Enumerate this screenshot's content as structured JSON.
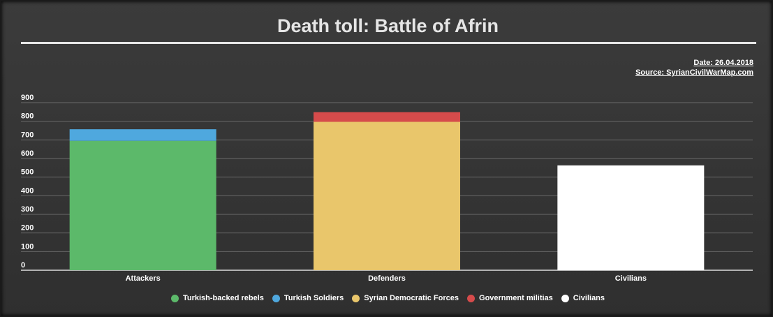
{
  "title": "Death toll: Battle of Afrin",
  "meta": {
    "date": "Date: 26.04.2018",
    "source": "Source: SyrianCivilWarMap.com"
  },
  "chart_data": {
    "type": "bar",
    "stacked": true,
    "categories": [
      "Attackers",
      "Defenders",
      "Civilians"
    ],
    "ylim": [
      0,
      900
    ],
    "yticks": [
      0,
      100,
      200,
      300,
      400,
      500,
      600,
      700,
      800,
      900
    ],
    "grid": true,
    "legend_position": "bottom",
    "series": [
      {
        "name": "Turkish-backed rebels",
        "color": "#5cb96a",
        "values": [
          695,
          0,
          0
        ]
      },
      {
        "name": "Turkish Soldiers",
        "color": "#4fa8de",
        "values": [
          62,
          0,
          0
        ]
      },
      {
        "name": "Syrian Democratic Forces",
        "color": "#e9c66b",
        "values": [
          0,
          797,
          0
        ]
      },
      {
        "name": "Government militias",
        "color": "#d64b4b",
        "values": [
          0,
          52,
          0
        ]
      },
      {
        "name": "Civilians",
        "color": "#ffffff",
        "values": [
          0,
          0,
          563
        ]
      }
    ]
  }
}
